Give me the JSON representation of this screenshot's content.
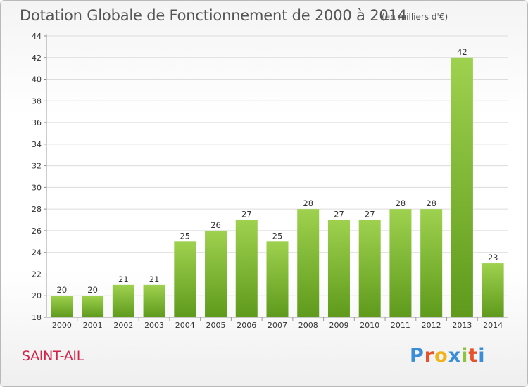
{
  "title": "Dotation Globale de Fonctionnement de 2000 à 2014",
  "subtitle": "(en milliers d'€)",
  "commune": "SAINT-AIL",
  "logo": {
    "letters": [
      "P",
      "r",
      "o",
      "x",
      "i",
      "t",
      "i"
    ],
    "colors": [
      "#3a8ed8",
      "#e8502a",
      "#f2b21a",
      "#3a8ed8",
      "#8bc53f",
      "#e8502a",
      "#3a8ed8"
    ]
  },
  "chart_data": {
    "type": "bar",
    "title": "Dotation Globale de Fonctionnement de 2000 à 2014",
    "unit": "(en milliers d'€)",
    "categories": [
      "2000",
      "2001",
      "2002",
      "2003",
      "2004",
      "2005",
      "2006",
      "2007",
      "2008",
      "2009",
      "2010",
      "2011",
      "2012",
      "2013",
      "2014"
    ],
    "values": [
      20,
      20,
      21,
      21,
      25,
      26,
      27,
      25,
      28,
      27,
      27,
      28,
      28,
      42,
      23
    ],
    "ylim": [
      18,
      44
    ],
    "yticks": [
      18,
      20,
      22,
      24,
      26,
      28,
      30,
      32,
      34,
      36,
      38,
      40,
      42,
      44
    ],
    "grid": true,
    "bar_color_top": "#9ed14e",
    "bar_color_bottom": "#5f9a1c"
  }
}
